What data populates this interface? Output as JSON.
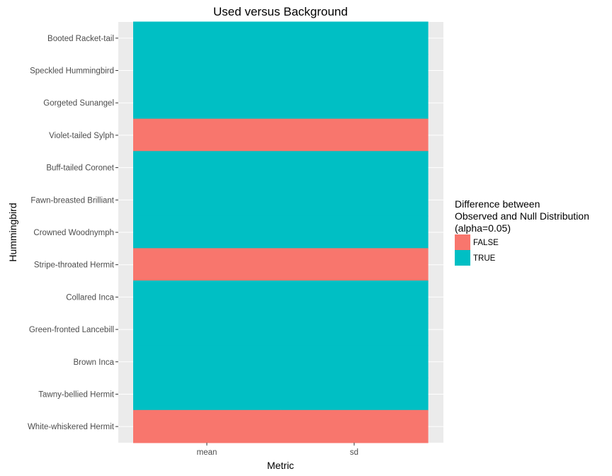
{
  "chart_data": {
    "type": "heatmap",
    "title": "Used versus Background",
    "xlabel": "Metric",
    "ylabel": "Hummingbird",
    "x_categories": [
      "mean",
      "sd"
    ],
    "y_categories": [
      "Booted Racket-tail",
      "Speckled Hummingbird",
      "Gorgeted Sunangel",
      "Violet-tailed Sylph",
      "Buff-tailed Coronet",
      "Fawn-breasted Brilliant",
      "Crowned Woodnymph",
      "Stripe-throated Hermit",
      "Collared Inca",
      "Green-fronted Lancebill",
      "Brown Inca",
      "Tawny-bellied Hermit",
      "White-whiskered Hermit"
    ],
    "values": [
      [
        "TRUE",
        "TRUE"
      ],
      [
        "TRUE",
        "TRUE"
      ],
      [
        "TRUE",
        "TRUE"
      ],
      [
        "FALSE",
        "FALSE"
      ],
      [
        "TRUE",
        "TRUE"
      ],
      [
        "TRUE",
        "TRUE"
      ],
      [
        "TRUE",
        "TRUE"
      ],
      [
        "FALSE",
        "FALSE"
      ],
      [
        "TRUE",
        "TRUE"
      ],
      [
        "TRUE",
        "TRUE"
      ],
      [
        "TRUE",
        "TRUE"
      ],
      [
        "TRUE",
        "TRUE"
      ],
      [
        "FALSE",
        "FALSE"
      ]
    ],
    "legend": {
      "title_lines": [
        "Difference between",
        "Observed and Null Distribution",
        "(alpha=0.05)"
      ],
      "position": "right",
      "entries": [
        {
          "label": "FALSE",
          "color": "#F8766D"
        },
        {
          "label": "TRUE",
          "color": "#00BFC4"
        }
      ]
    },
    "panel_background": "#EBEBEB",
    "gridline_color": "#FFFFFF",
    "grid": true
  }
}
